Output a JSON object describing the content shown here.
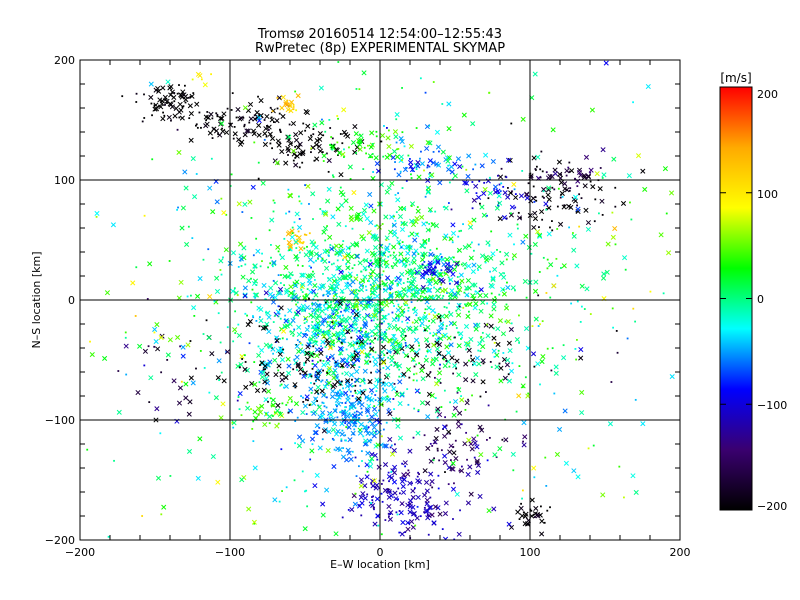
{
  "chart_data": {
    "type": "scatter",
    "title": "Tromsø 20160514 12:54:00–12:55:43",
    "subtitle": "RwPretec (8p) EXPERIMENTAL SKYMAP",
    "xlabel": "E–W location [km]",
    "ylabel": "N–S location [km]",
    "xlim": [
      -200,
      200
    ],
    "ylim": [
      -200,
      200
    ],
    "x_ticks": [
      "−200",
      "−100",
      "0",
      "100",
      "200"
    ],
    "y_ticks": [
      "−200",
      "−100",
      "0",
      "100",
      "200"
    ],
    "grid_lines": [
      -100,
      0,
      100
    ],
    "grid": true,
    "colorbar": {
      "unit": "[m/s]",
      "range": [
        -200,
        200
      ],
      "ticks": [
        "200",
        "100",
        "0",
        "−100",
        "−200"
      ],
      "colors": [
        "#ff0000",
        "#ffaa00",
        "#ffff00",
        "#00ff00",
        "#00ffff",
        "#0000ff",
        "#3a0070",
        "#000000"
      ]
    },
    "markers": [
      "x (cross)",
      "dot"
    ],
    "clusters": [
      {
        "x": -140,
        "y": 165,
        "sx": 10,
        "sy": 7,
        "n": 70,
        "v": -205,
        "vs": 10
      },
      {
        "x": -95,
        "y": 150,
        "sx": 20,
        "sy": 8,
        "n": 90,
        "v": -200,
        "vs": 10
      },
      {
        "x": -55,
        "y": 130,
        "sx": 20,
        "sy": 10,
        "n": 90,
        "v": -200,
        "vs": 10
      },
      {
        "x": -60,
        "y": 163,
        "sx": 5,
        "sy": 5,
        "n": 18,
        "v": 115,
        "vs": 12
      },
      {
        "x": -122,
        "y": 188,
        "sx": 4,
        "sy": 4,
        "n": 6,
        "v": 90,
        "vs": 10
      },
      {
        "x": -10,
        "y": 130,
        "sx": 14,
        "sy": 7,
        "n": 50,
        "v": 30,
        "vs": 20
      },
      {
        "x": 35,
        "y": 112,
        "sx": 22,
        "sy": 8,
        "n": 60,
        "v": -60,
        "vs": 20
      },
      {
        "x": 110,
        "y": 85,
        "sx": 20,
        "sy": 15,
        "n": 90,
        "v": -200,
        "vs": 15
      },
      {
        "x": 120,
        "y": 105,
        "sx": 15,
        "sy": 8,
        "n": 40,
        "v": -160,
        "vs": 20
      },
      {
        "x": 80,
        "y": 85,
        "sx": 15,
        "sy": 10,
        "n": 35,
        "v": -100,
        "vs": 15
      },
      {
        "x": 5,
        "y": 5,
        "sx": 45,
        "sy": 40,
        "n": 1100,
        "v": 0,
        "vs": 25
      },
      {
        "x": -30,
        "y": -25,
        "sx": 30,
        "sy": 30,
        "n": 400,
        "v": -35,
        "vs": 30
      },
      {
        "x": -55,
        "y": 52,
        "sx": 4,
        "sy": 4,
        "n": 20,
        "v": 120,
        "vs": 10
      },
      {
        "x": -20,
        "y": -95,
        "sx": 15,
        "sy": 20,
        "n": 250,
        "v": -50,
        "vs": 15
      },
      {
        "x": 15,
        "y": -160,
        "sx": 20,
        "sy": 20,
        "n": 170,
        "v": -115,
        "vs": 15
      },
      {
        "x": 50,
        "y": -125,
        "sx": 15,
        "sy": 20,
        "n": 90,
        "v": -150,
        "vs": 20
      },
      {
        "x": 100,
        "y": -180,
        "sx": 7,
        "sy": 7,
        "n": 30,
        "v": -200,
        "vs": 10
      },
      {
        "x": -45,
        "y": -55,
        "sx": 35,
        "sy": 20,
        "n": 120,
        "v": -200,
        "vs": 10
      },
      {
        "x": 60,
        "y": -50,
        "sx": 40,
        "sy": 20,
        "n": 70,
        "v": -190,
        "vs": 15
      },
      {
        "x": -140,
        "y": -55,
        "sx": 20,
        "sy": 25,
        "n": 25,
        "v": -180,
        "vs": 30
      },
      {
        "x": -75,
        "y": -95,
        "sx": 10,
        "sy": 10,
        "n": 40,
        "v": 40,
        "vs": 15
      },
      {
        "x": 40,
        "y": 25,
        "sx": 8,
        "sy": 6,
        "n": 40,
        "v": -90,
        "vs": 20
      },
      {
        "x": 0,
        "y": 0,
        "sx": 110,
        "sy": 110,
        "n": 700,
        "v": 10,
        "vs": 45
      }
    ]
  }
}
